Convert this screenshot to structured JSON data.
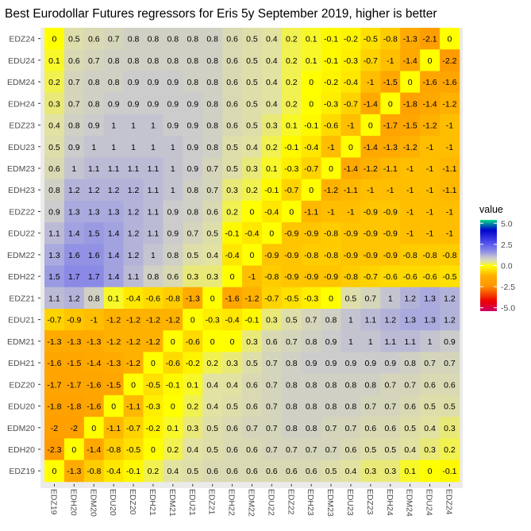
{
  "chart_data": {
    "type": "heatmap",
    "title": "Best Eurodollar Futures regressors for Eris 5y September 2019, higher is better",
    "xlabel": "",
    "ylabel": "",
    "x_categories": [
      "EDZ19",
      "EDH20",
      "EDM20",
      "EDU20",
      "EDZ20",
      "EDH21",
      "EDM21",
      "EDU21",
      "EDZ21",
      "EDH22",
      "EDM22",
      "EDU22",
      "EDZ22",
      "EDH23",
      "EDM23",
      "EDU23",
      "EDZ23",
      "EDH24",
      "EDM24",
      "EDU24",
      "EDZ24"
    ],
    "y_categories": [
      "EDZ24",
      "EDU24",
      "EDM24",
      "EDH24",
      "EDZ23",
      "EDU23",
      "EDM23",
      "EDH23",
      "EDZ22",
      "EDU22",
      "EDM22",
      "EDH22",
      "EDZ21",
      "EDU21",
      "EDM21",
      "EDH21",
      "EDZ20",
      "EDU20",
      "EDM20",
      "EDH20",
      "EDZ19"
    ],
    "values": [
      [
        0,
        0.5,
        0.6,
        0.7,
        0.8,
        0.8,
        0.8,
        0.8,
        0.8,
        0.6,
        0.5,
        0.4,
        0.2,
        0.1,
        -0.1,
        -0.2,
        -0.5,
        -0.8,
        -1.3,
        -2.1,
        0
      ],
      [
        0.1,
        0.6,
        0.7,
        0.8,
        0.8,
        0.8,
        0.8,
        0.8,
        0.8,
        0.6,
        0.5,
        0.4,
        0.2,
        0.1,
        -0.1,
        -0.3,
        -0.7,
        -1,
        -1.4,
        0,
        -2.2
      ],
      [
        0.2,
        0.7,
        0.8,
        0.8,
        0.9,
        0.9,
        0.9,
        0.8,
        0.8,
        0.6,
        0.5,
        0.4,
        0.2,
        0,
        -0.2,
        -0.4,
        -1,
        -1.5,
        0,
        -1.6,
        -1.6
      ],
      [
        0.3,
        0.7,
        0.8,
        0.9,
        0.9,
        0.9,
        0.9,
        0.9,
        0.8,
        0.6,
        0.5,
        0.4,
        0.2,
        0,
        -0.3,
        -0.7,
        -1.4,
        0,
        -1.8,
        -1.4,
        -1.2
      ],
      [
        0.4,
        0.8,
        0.9,
        1,
        1,
        1,
        0.9,
        0.9,
        0.8,
        0.6,
        0.5,
        0.3,
        0.1,
        -0.1,
        -0.6,
        -1,
        0,
        -1.7,
        -1.5,
        -1.2,
        -1
      ],
      [
        0.5,
        0.9,
        1,
        1,
        1,
        1,
        1,
        0.9,
        0.8,
        0.5,
        0.4,
        0.2,
        -0.1,
        -0.4,
        -1,
        0,
        -1.4,
        -1.3,
        -1.2,
        -1,
        -1
      ],
      [
        0.6,
        1,
        1.1,
        1.1,
        1.1,
        1.1,
        1,
        0.9,
        0.7,
        0.5,
        0.3,
        0.1,
        -0.3,
        -0.7,
        0,
        -1.4,
        -1.2,
        -1.1,
        -1,
        -1,
        -1.1
      ],
      [
        0.8,
        1.2,
        1.2,
        1.2,
        1.2,
        1.1,
        1,
        0.8,
        0.7,
        0.3,
        0.2,
        -0.1,
        -0.7,
        0,
        -1.2,
        -1.1,
        -1,
        -1,
        -1,
        -1,
        -1.1
      ],
      [
        0.9,
        1.3,
        1.3,
        1.3,
        1.2,
        1.1,
        0.9,
        0.8,
        0.6,
        0.2,
        0,
        -0.4,
        0,
        -1.1,
        -1,
        -1,
        -0.9,
        -0.9,
        -1,
        -1,
        -1
      ],
      [
        1.1,
        1.4,
        1.5,
        1.4,
        1.2,
        1.1,
        0.9,
        0.7,
        0.5,
        -0.1,
        -0.4,
        0,
        -0.9,
        -0.9,
        -0.8,
        -0.9,
        -0.9,
        -0.9,
        -1,
        -1,
        -1
      ],
      [
        1.3,
        1.6,
        1.6,
        1.4,
        1.2,
        1,
        0.8,
        0.5,
        0.4,
        -0.4,
        0,
        -0.9,
        -0.9,
        -0.8,
        -0.8,
        -0.9,
        -0.9,
        -0.9,
        -0.8,
        -0.8,
        -0.8
      ],
      [
        1.5,
        1.7,
        1.7,
        1.4,
        1.1,
        0.8,
        0.6,
        0.3,
        0.3,
        0,
        -1,
        -0.8,
        -0.9,
        -0.9,
        -0.9,
        -0.8,
        -0.7,
        -0.6,
        -0.6,
        -0.6,
        -0.5
      ],
      [
        1.1,
        1.2,
        0.8,
        0.1,
        -0.4,
        -0.6,
        -0.8,
        -1.3,
        0,
        -1.6,
        -1.2,
        -0.7,
        -0.5,
        -0.3,
        0,
        0.5,
        0.7,
        1,
        1.2,
        1.3,
        1.2
      ],
      [
        -0.7,
        -0.9,
        -1,
        -1.2,
        -1.2,
        -1.2,
        -1.2,
        0,
        -0.3,
        -0.4,
        -0.1,
        0.3,
        0.5,
        0.7,
        0.8,
        1,
        1.1,
        1.2,
        1.3,
        1.3,
        1.2
      ],
      [
        -1.3,
        -1.3,
        -1.3,
        -1.2,
        -1.2,
        -1.2,
        0,
        -0.6,
        0,
        0,
        0.3,
        0.6,
        0.7,
        0.8,
        0.9,
        1,
        1,
        1.1,
        1.1,
        1,
        0.9
      ],
      [
        -1.6,
        -1.5,
        -1.4,
        -1.3,
        -1.2,
        0,
        -0.6,
        -0.2,
        0.2,
        0.3,
        0.5,
        0.7,
        0.8,
        0.9,
        0.9,
        0.9,
        0.9,
        0.9,
        0.8,
        0.7,
        0.7
      ],
      [
        -1.7,
        -1.7,
        -1.6,
        -1.5,
        0,
        -0.5,
        -0.1,
        0.1,
        0.4,
        0.4,
        0.6,
        0.7,
        0.8,
        0.8,
        0.8,
        0.8,
        0.8,
        0.7,
        0.7,
        0.6,
        0.6
      ],
      [
        -1.8,
        -1.8,
        -1.6,
        0,
        -1.1,
        -0.3,
        0,
        0.2,
        0.4,
        0.5,
        0.6,
        0.7,
        0.8,
        0.8,
        0.8,
        0.8,
        0.7,
        0.7,
        0.6,
        0.5,
        0.5
      ],
      [
        -2,
        -2,
        0,
        -1.1,
        -0.7,
        -0.2,
        0.1,
        0.3,
        0.5,
        0.6,
        0.7,
        0.7,
        0.8,
        0.8,
        0.7,
        0.7,
        0.6,
        0.6,
        0.5,
        0.4,
        0.3
      ],
      [
        -2.3,
        0,
        -1.4,
        -0.8,
        -0.5,
        0,
        0.2,
        0.4,
        0.5,
        0.6,
        0.6,
        0.7,
        0.7,
        0.7,
        0.7,
        0.6,
        0.5,
        0.5,
        0.4,
        0.3,
        0.2
      ],
      [
        0,
        -1.3,
        -0.8,
        -0.4,
        -0.1,
        0.2,
        0.4,
        0.5,
        0.6,
        0.6,
        0.6,
        0.6,
        0.6,
        0.6,
        0.5,
        0.4,
        0.3,
        0.3,
        0.1,
        0,
        -0.1
      ]
    ],
    "legend": {
      "title": "value",
      "ticks": [
        5,
        2.5,
        0,
        -2.5,
        -5
      ],
      "tick_labels": [
        "5.0",
        "2.5",
        "0.0",
        "-2.5",
        "-5.0"
      ],
      "range": [
        -5.4,
        5.4
      ],
      "placement": "right"
    },
    "color_stops": [
      {
        "value": -5.4,
        "color": "#cc0066"
      },
      {
        "value": -4.2,
        "color": "#ee0000"
      },
      {
        "value": -2.4,
        "color": "#ff9900"
      },
      {
        "value": -1.3,
        "color": "#ffaa00"
      },
      {
        "value": -0.3,
        "color": "#ffee00"
      },
      {
        "value": 0,
        "color": "#ffff00"
      },
      {
        "value": 0.4,
        "color": "#e2e2a2"
      },
      {
        "value": 0.9,
        "color": "#cccccc"
      },
      {
        "value": 1.3,
        "color": "#aaaade"
      },
      {
        "value": 1.7,
        "color": "#8a8ae6"
      },
      {
        "value": 2.6,
        "color": "#5555ee"
      },
      {
        "value": 4.2,
        "color": "#0000cc"
      },
      {
        "value": 5.4,
        "color": "#00dd88"
      }
    ],
    "panel_background": "#ebebeb"
  }
}
